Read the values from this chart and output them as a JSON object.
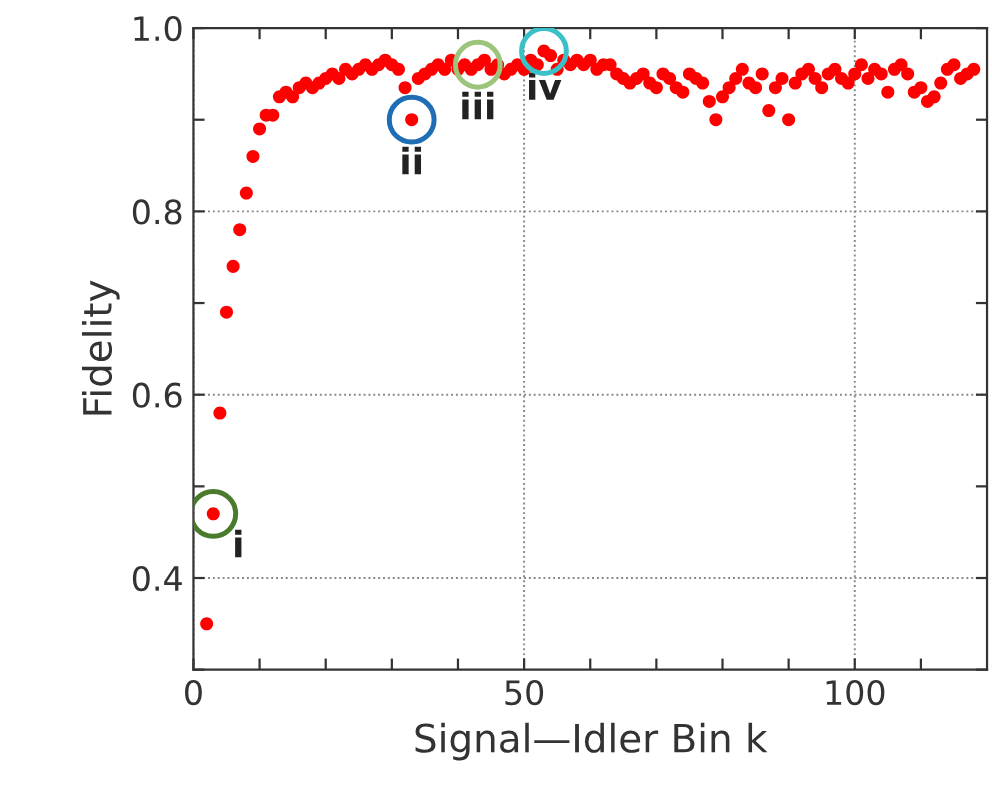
{
  "chart_data": {
    "type": "scatter",
    "xlabel": "Signal—Idler Bin k",
    "ylabel": "Fidelity",
    "x": [
      2,
      3,
      4,
      5,
      6,
      7,
      8,
      9,
      10,
      11,
      12,
      13,
      14,
      15,
      16,
      17,
      18,
      19,
      20,
      21,
      22,
      23,
      24,
      25,
      26,
      27,
      28,
      29,
      30,
      31,
      32,
      33,
      34,
      35,
      36,
      37,
      38,
      39,
      40,
      41,
      42,
      43,
      44,
      45,
      46,
      47,
      48,
      49,
      50,
      51,
      52,
      53,
      54,
      55,
      56,
      57,
      58,
      59,
      60,
      61,
      62,
      63,
      64,
      65,
      66,
      67,
      68,
      69,
      70,
      71,
      72,
      73,
      74,
      75,
      76,
      77,
      78,
      79,
      80,
      81,
      82,
      83,
      84,
      85,
      86,
      87,
      88,
      89,
      90,
      91,
      92,
      93,
      94,
      95,
      96,
      97,
      98,
      99,
      100,
      101,
      102,
      103,
      104,
      105,
      106,
      107,
      108,
      109,
      110,
      111,
      112,
      113,
      114,
      115,
      116,
      117,
      118
    ],
    "series": [
      {
        "color": "#ff0000",
        "values": [
          0.35,
          0.47,
          0.58,
          0.69,
          0.74,
          0.78,
          0.82,
          0.86,
          0.89,
          0.905,
          0.905,
          0.925,
          0.93,
          0.925,
          0.935,
          0.94,
          0.935,
          0.94,
          0.945,
          0.95,
          0.945,
          0.955,
          0.95,
          0.955,
          0.96,
          0.955,
          0.96,
          0.965,
          0.96,
          0.955,
          0.935,
          0.9,
          0.945,
          0.95,
          0.955,
          0.96,
          0.955,
          0.965,
          0.955,
          0.96,
          0.955,
          0.96,
          0.965,
          0.955,
          0.96,
          0.95,
          0.955,
          0.96,
          0.955,
          0.965,
          0.96,
          0.975,
          0.97,
          0.955,
          0.965,
          0.96,
          0.965,
          0.96,
          0.965,
          0.955,
          0.96,
          0.96,
          0.95,
          0.945,
          0.94,
          0.945,
          0.95,
          0.94,
          0.935,
          0.95,
          0.945,
          0.935,
          0.93,
          0.95,
          0.945,
          0.94,
          0.92,
          0.9,
          0.925,
          0.935,
          0.945,
          0.955,
          0.94,
          0.935,
          0.95,
          0.91,
          0.935,
          0.945,
          0.9,
          0.94,
          0.95,
          0.955,
          0.945,
          0.935,
          0.95,
          0.955,
          0.945,
          0.94,
          0.95,
          0.96,
          0.945,
          0.955,
          0.95,
          0.93,
          0.955,
          0.96,
          0.95,
          0.93,
          0.935,
          0.92,
          0.925,
          0.94,
          0.955,
          0.96,
          0.945,
          0.95,
          0.955
        ]
      }
    ],
    "marker": "circle",
    "grid": true,
    "xlim": [
      0,
      120
    ],
    "xticks": [
      0,
      {
        "value": 10,
        "label": null
      },
      {
        "value": 20,
        "label": null
      },
      {
        "value": 30,
        "label": null
      },
      {
        "value": 40,
        "label": null
      },
      50,
      {
        "value": 60,
        "label": null
      },
      {
        "value": 70,
        "label": null
      },
      {
        "value": 80,
        "label": null
      },
      {
        "value": 90,
        "label": null
      },
      100,
      {
        "value": 110,
        "label": null
      }
    ],
    "ylim": [
      0.3,
      1.0
    ],
    "yticks": [
      {
        "value": 0.3,
        "label": null
      },
      0.4,
      {
        "value": 0.5,
        "label": null
      },
      0.6,
      {
        "value": 0.7,
        "label": null
      },
      0.8,
      {
        "value": 0.9,
        "label": null
      },
      {
        "value": 1.0,
        "label": "1.0"
      }
    ],
    "annotations": [
      {
        "text": "i",
        "x": 3,
        "y": 0.47
      },
      {
        "text": "ii",
        "x": 33,
        "y": 0.9
      },
      {
        "text": "iii",
        "x": 43,
        "y": 0.96
      },
      {
        "text": "iv",
        "x": 53,
        "y": 0.975
      }
    ]
  }
}
